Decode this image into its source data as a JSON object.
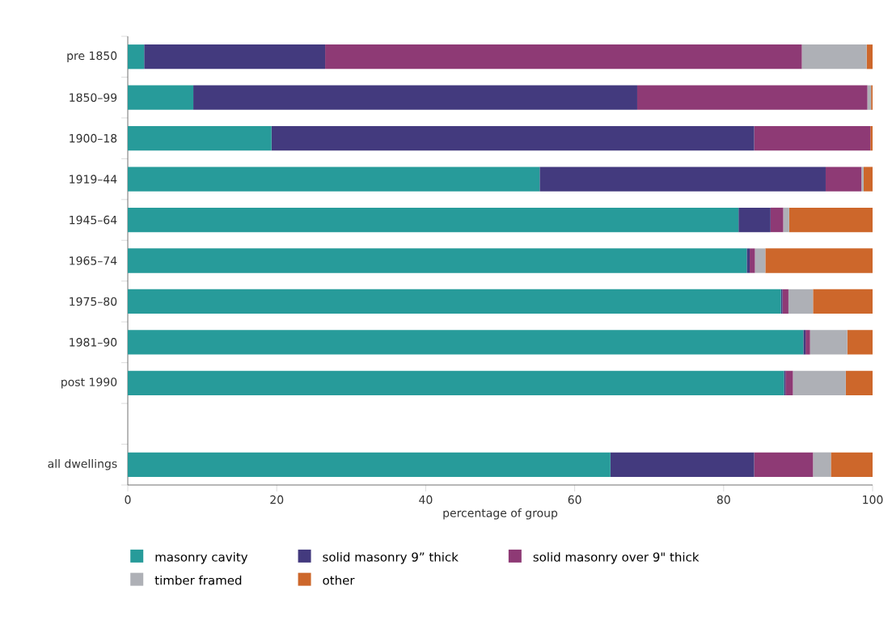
{
  "chart_data": {
    "type": "bar",
    "orientation": "horizontal",
    "stacked": true,
    "xlabel": "percentage of group",
    "categories": [
      "pre 1850",
      "1850–99",
      "1900–18",
      "1919–44",
      "1945–64",
      "1965–74",
      "1975–80",
      "1981–90",
      "post 1990",
      null,
      "all dwellings"
    ],
    "series": [
      {
        "name": "masonry cavity",
        "color": "#279b9a",
        "values": [
          2.2,
          8.8,
          19.3,
          55.3,
          82.0,
          83.1,
          87.7,
          90.7,
          88.1,
          null,
          64.8
        ]
      },
      {
        "name": "solid masonry 9” thick",
        "color": "#433a7e",
        "values": [
          24.3,
          59.6,
          64.8,
          38.4,
          4.3,
          0.4,
          0.2,
          0.3,
          0.2,
          null,
          19.3
        ]
      },
      {
        "name": "solid masonry over 9\" thick",
        "color": "#8e3a75",
        "values": [
          64.0,
          30.9,
          15.6,
          4.8,
          1.7,
          0.7,
          0.8,
          0.6,
          1.0,
          null,
          7.9
        ]
      },
      {
        "name": "timber framed",
        "color": "#aeb0b6",
        "values": [
          8.7,
          0.5,
          null,
          0.3,
          0.8,
          1.4,
          3.3,
          5.0,
          7.1,
          null,
          2.4
        ]
      },
      {
        "name": "other",
        "color": "#cd672b",
        "values": [
          0.8,
          0.2,
          0.3,
          1.2,
          11.2,
          14.4,
          8.0,
          3.4,
          3.6,
          null,
          5.6
        ]
      }
    ],
    "xlim": [
      0,
      100
    ],
    "xticks": [
      0,
      20,
      40,
      60,
      80,
      100
    ],
    "grid": false,
    "legend": "bottom"
  }
}
